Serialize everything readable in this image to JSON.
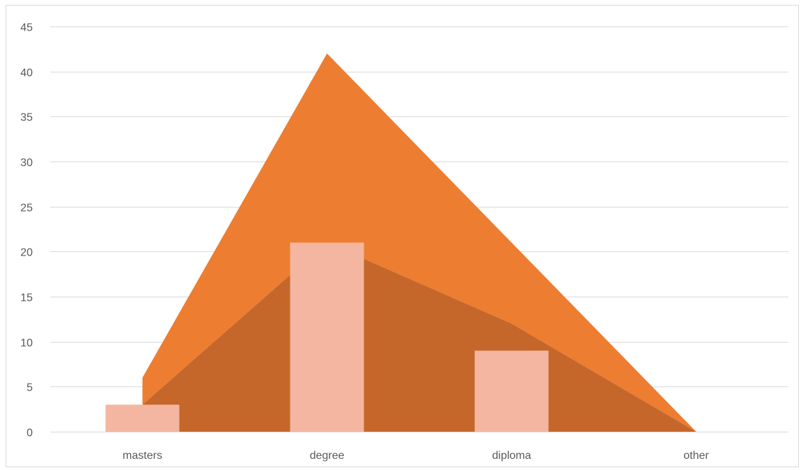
{
  "chart_data": {
    "type": "bar",
    "title": "",
    "xlabel": "",
    "ylabel": "",
    "categories": [
      "masters",
      "degree",
      "diploma",
      "other"
    ],
    "ylim": [
      0,
      45
    ],
    "yticks": [
      0,
      5,
      10,
      15,
      20,
      25,
      30,
      35,
      40,
      45
    ],
    "grid": true,
    "legend": "none",
    "series": [
      {
        "kind": "area",
        "stacked": true,
        "values": [
          3,
          21,
          12,
          0
        ],
        "color": "#ed7d31"
      },
      {
        "kind": "area",
        "stacked": true,
        "values": [
          3,
          21,
          9,
          0
        ],
        "color": "#ed7d31"
      },
      {
        "kind": "bar",
        "values": [
          3,
          21,
          9,
          0
        ],
        "color": "#f4b6a0"
      }
    ],
    "area_colors": {
      "lower": "#c5672a",
      "upper": "#ed7d31"
    }
  }
}
